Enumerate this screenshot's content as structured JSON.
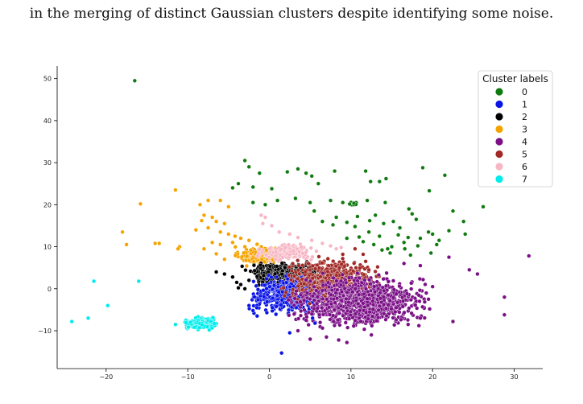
{
  "page": {
    "caption": "in the merging of distinct Gaussian clusters despite identifying some noise."
  },
  "chart_data": {
    "type": "scatter",
    "title": "",
    "xlabel": "",
    "ylabel": "",
    "xlim": [
      -26,
      33.5
    ],
    "ylim": [
      -19,
      53
    ],
    "x_ticks": [
      -20,
      -10,
      0,
      10,
      20,
      30
    ],
    "y_ticks": [
      -10,
      0,
      10,
      20,
      30,
      40,
      50
    ],
    "grid": false,
    "legend": {
      "title": "Cluster labels",
      "placement": "top-right",
      "entries": [
        "0",
        "1",
        "2",
        "3",
        "4",
        "5",
        "6",
        "7"
      ]
    },
    "colors": {
      "0": "#0f7a0f",
      "1": "#0a14e6",
      "2": "#000000",
      "3": "#f5a300",
      "4": "#7a0f86",
      "5": "#a12a26",
      "6": "#f7b6c4",
      "7": "#00ecec"
    },
    "clusters": [
      {
        "label": "3",
        "center": [
          -1.5,
          8
        ],
        "spread": [
          1.1,
          1.0
        ],
        "count": 180
      },
      {
        "label": "6",
        "center": [
          2.2,
          8.6
        ],
        "spread": [
          1.4,
          1.0
        ],
        "count": 170
      },
      {
        "label": "2",
        "center": [
          1.8,
          3.6
        ],
        "spread": [
          2.0,
          1.1
        ],
        "count": 360
      },
      {
        "label": "1",
        "center": [
          2.5,
          -1.5
        ],
        "spread": [
          2.0,
          1.9
        ],
        "count": 520
      },
      {
        "label": "5",
        "center": [
          7.5,
          2.0
        ],
        "spread": [
          2.4,
          2.2
        ],
        "count": 560
      },
      {
        "label": "4",
        "center": [
          11,
          -3
        ],
        "spread": [
          3.4,
          2.6
        ],
        "count": 1100
      },
      {
        "label": "7",
        "center": [
          -8.5,
          -8.3
        ],
        "spread": [
          0.8,
          0.65
        ],
        "count": 170
      },
      {
        "label": "0",
        "center": [
          10.2,
          20.2
        ],
        "spread": [
          0.3,
          0.2
        ],
        "count": 20
      }
    ],
    "outliers": [
      {
        "label": "0",
        "points": [
          [
            -16.5,
            49.5
          ],
          [
            -3,
            30.5
          ],
          [
            -2.5,
            29
          ],
          [
            -1.2,
            27.5
          ],
          [
            -3.8,
            25
          ],
          [
            -4.5,
            24
          ],
          [
            -2,
            24.2
          ],
          [
            0.3,
            23.8
          ],
          [
            2.2,
            27.8
          ],
          [
            3.5,
            28.5
          ],
          [
            4.5,
            27.5
          ],
          [
            5.2,
            26.8
          ],
          [
            6,
            25
          ],
          [
            8,
            28
          ],
          [
            11.8,
            28
          ],
          [
            12.4,
            25.5
          ],
          [
            13.5,
            25.5
          ],
          [
            14.3,
            26.2
          ],
          [
            18.8,
            28.8
          ],
          [
            21.5,
            27
          ],
          [
            19.6,
            23.3
          ],
          [
            26.2,
            19.5
          ],
          [
            -2,
            20.5
          ],
          [
            -0.5,
            20
          ],
          [
            1,
            21
          ],
          [
            3.2,
            21.5
          ],
          [
            5,
            20.5
          ],
          [
            7.5,
            21
          ],
          [
            9,
            20.5
          ],
          [
            12,
            21
          ],
          [
            14.2,
            20.5
          ],
          [
            8.2,
            17
          ],
          [
            9.5,
            15.8
          ],
          [
            10.5,
            14.8
          ],
          [
            12.3,
            16.2
          ],
          [
            13,
            17.5
          ],
          [
            14,
            15.5
          ],
          [
            15.2,
            16
          ],
          [
            16,
            14.5
          ],
          [
            17.1,
            19
          ],
          [
            17.5,
            17.8
          ],
          [
            18,
            16.5
          ],
          [
            19.5,
            13.5
          ],
          [
            20,
            13
          ],
          [
            18.5,
            12
          ],
          [
            17,
            12.2
          ],
          [
            16.5,
            11
          ],
          [
            14.5,
            9.5
          ],
          [
            12.8,
            10.5
          ],
          [
            11.5,
            11.2
          ],
          [
            13.5,
            12.5
          ],
          [
            15,
            10
          ],
          [
            17.3,
            8
          ],
          [
            19.8,
            8.5
          ],
          [
            20.5,
            10.5
          ],
          [
            23.8,
            16
          ],
          [
            24,
            13
          ],
          [
            22,
            13.8
          ],
          [
            10.8,
            17.2
          ],
          [
            7.8,
            15.2
          ],
          [
            5.5,
            18.5
          ],
          [
            6.5,
            16
          ],
          [
            14.8,
            8.5
          ],
          [
            12.2,
            13.5
          ],
          [
            15.8,
            12.8
          ],
          [
            16.6,
            9.5
          ],
          [
            20.8,
            11.5
          ],
          [
            22.5,
            18.5
          ],
          [
            11,
            12.3
          ],
          [
            9.5,
            12
          ],
          [
            13.8,
            9.2
          ],
          [
            18.2,
            10.2
          ]
        ]
      },
      {
        "label": "3",
        "points": [
          [
            -11.5,
            23.5
          ],
          [
            -8.5,
            20
          ],
          [
            -7.5,
            21
          ],
          [
            -6,
            21
          ],
          [
            -5,
            19.5
          ],
          [
            -8,
            17.5
          ],
          [
            -7,
            17
          ],
          [
            -6.5,
            16
          ],
          [
            -5.5,
            15.5
          ],
          [
            -8.3,
            16.2
          ],
          [
            -9,
            14
          ],
          [
            -7.5,
            14.5
          ],
          [
            -6,
            13.5
          ],
          [
            -5,
            13
          ],
          [
            -4.2,
            12.5
          ],
          [
            -3.5,
            12
          ],
          [
            -4.5,
            11
          ],
          [
            -3,
            10
          ],
          [
            -2.5,
            11.5
          ],
          [
            -6,
            10.5
          ],
          [
            -7,
            11
          ],
          [
            -8,
            9.5
          ],
          [
            -11,
            10
          ],
          [
            -11.2,
            9.5
          ],
          [
            -13.5,
            10.8
          ],
          [
            -14,
            10.8
          ],
          [
            -15.8,
            20.2
          ],
          [
            -17.5,
            10.5
          ],
          [
            -18,
            13.5
          ],
          [
            -5.5,
            7
          ],
          [
            -6.5,
            8.3
          ]
        ]
      },
      {
        "label": "6",
        "points": [
          [
            -0.8,
            15.5
          ],
          [
            -1,
            17.5
          ],
          [
            -0.5,
            17
          ],
          [
            0.3,
            15
          ],
          [
            1.2,
            13.5
          ],
          [
            2.5,
            13
          ],
          [
            3.5,
            12.2
          ],
          [
            5.2,
            11.5
          ],
          [
            6.5,
            10.8
          ],
          [
            7.5,
            10.2
          ],
          [
            8.2,
            9.5
          ],
          [
            8.8,
            9.8
          ]
        ]
      },
      {
        "label": "2",
        "points": [
          [
            -6.5,
            4
          ],
          [
            -5.5,
            3.5
          ],
          [
            -4.5,
            2.8
          ],
          [
            -4,
            1.5
          ],
          [
            -3.5,
            1
          ],
          [
            -3.8,
            0.2
          ],
          [
            -3,
            0
          ],
          [
            -2.5,
            2
          ]
        ]
      },
      {
        "label": "1",
        "points": [
          [
            -2.5,
            -4
          ],
          [
            -2,
            -5.2
          ],
          [
            -1.5,
            -6.5
          ],
          [
            2.5,
            -10.5
          ],
          [
            1.5,
            -15.3
          ],
          [
            5.3,
            -7
          ],
          [
            5.6,
            -8.2
          ]
        ]
      },
      {
        "label": "4",
        "points": [
          [
            31.8,
            7.8
          ],
          [
            28.8,
            -2
          ],
          [
            28.8,
            -6.2
          ],
          [
            25.5,
            3.5
          ],
          [
            22.5,
            -7.8
          ],
          [
            22,
            7.5
          ],
          [
            20,
            0.5
          ],
          [
            19.5,
            -2.5
          ],
          [
            24.5,
            4.5
          ],
          [
            18.5,
            5.5
          ],
          [
            16.5,
            6
          ],
          [
            7,
            -11.5
          ],
          [
            8.5,
            -12.2
          ],
          [
            9.5,
            -12.8
          ],
          [
            5,
            -12
          ],
          [
            3.5,
            -10
          ],
          [
            4.5,
            -7.5
          ],
          [
            12.5,
            -11
          ],
          [
            17,
            -8.5
          ],
          [
            18.5,
            -7
          ]
        ]
      },
      {
        "label": "5",
        "points": [
          [
            10.5,
            9.5
          ],
          [
            11.5,
            8.2
          ],
          [
            9,
            8.2
          ],
          [
            11.8,
            6.5
          ],
          [
            12.2,
            4.5
          ],
          [
            4.8,
            6
          ]
        ]
      },
      {
        "label": "7",
        "points": [
          [
            -24.2,
            -7.8
          ],
          [
            -22.2,
            -7
          ],
          [
            -21.5,
            1.8
          ],
          [
            -19.8,
            -4
          ],
          [
            -16,
            1.8
          ],
          [
            -11.5,
            -8.5
          ],
          [
            -7.2,
            -7.8
          ]
        ]
      }
    ]
  }
}
